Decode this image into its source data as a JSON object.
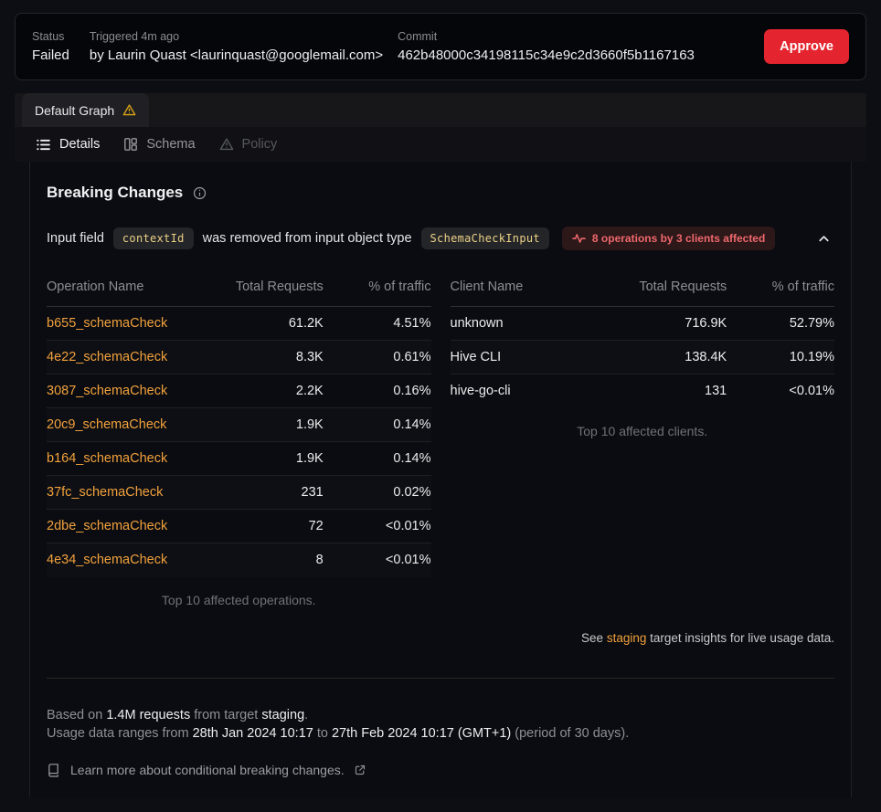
{
  "status_bar": {
    "status_label": "Status",
    "status_value": "Failed",
    "triggered_label": "Triggered 4m ago",
    "triggered_value": "by Laurin Quast <laurinquast@googlemail.com>",
    "commit_label": "Commit",
    "commit_value": "462b48000c34198115c34e9c2d3660f5b1167163",
    "approve_label": "Approve"
  },
  "graph_tab": {
    "label": "Default Graph",
    "warning_icon": "warning-triangle-icon"
  },
  "sub_tabs": [
    {
      "label": "Details",
      "icon": "list-icon",
      "state": "active"
    },
    {
      "label": "Schema",
      "icon": "columns-icon",
      "state": "inactive"
    },
    {
      "label": "Policy",
      "icon": "warning-triangle-icon",
      "state": "disabled"
    }
  ],
  "breaking_changes": {
    "title": "Breaking Changes",
    "info_icon": "info-icon",
    "change": {
      "text_before": "Input field",
      "field_code": "contextId",
      "text_middle": "was removed from input object type",
      "type_code": "SchemaCheckInput",
      "badge_icon": "pulse-icon",
      "affected_badge": "8 operations by 3 clients affected",
      "expand_icon": "chevron-up-icon"
    }
  },
  "operations_table": {
    "headers": [
      "Operation Name",
      "Total Requests",
      "% of traffic"
    ],
    "rows": [
      [
        "b655_schemaCheck",
        "61.2K",
        "4.51%"
      ],
      [
        "4e22_schemaCheck",
        "8.3K",
        "0.61%"
      ],
      [
        "3087_schemaCheck",
        "2.2K",
        "0.16%"
      ],
      [
        "20c9_schemaCheck",
        "1.9K",
        "0.14%"
      ],
      [
        "b164_schemaCheck",
        "1.9K",
        "0.14%"
      ],
      [
        "37fc_schemaCheck",
        "231",
        "0.02%"
      ],
      [
        "2dbe_schemaCheck",
        "72",
        "<0.01%"
      ],
      [
        "4e34_schemaCheck",
        "8",
        "<0.01%"
      ]
    ],
    "caption": "Top 10 affected operations."
  },
  "clients_table": {
    "headers": [
      "Client Name",
      "Total Requests",
      "% of traffic"
    ],
    "rows": [
      [
        "unknown",
        "716.9K",
        "52.79%"
      ],
      [
        "Hive CLI",
        "138.4K",
        "10.19%"
      ],
      [
        "hive-go-cli",
        "131",
        "<0.01%"
      ]
    ],
    "caption": "Top 10 affected clients."
  },
  "insights_note": {
    "prefix": "See ",
    "link": "staging",
    "suffix": " target insights for live usage data."
  },
  "footer": {
    "line1": {
      "t1": "Based on ",
      "b1": "1.4M requests",
      "t2": " from target ",
      "b2": "staging",
      "t3": "."
    },
    "line2": {
      "t1": "Usage data ranges from ",
      "b1": "28th Jan 2024 10:17",
      "t2": " to ",
      "b2": "27th Feb 2024 10:17 (GMT+1)",
      "t3": " (period of 30 days)."
    },
    "learn_more": "Learn more about conditional breaking changes.",
    "book_icon": "book-icon",
    "external_link_icon": "external-link-icon"
  },
  "colors": {
    "accent_link": "#f2a13c",
    "code_text": "#edd184",
    "danger_button": "#e4242e",
    "badge_text": "#ee686c",
    "badge_bg": "#2c1719",
    "warning_icon": "#d9a416"
  }
}
